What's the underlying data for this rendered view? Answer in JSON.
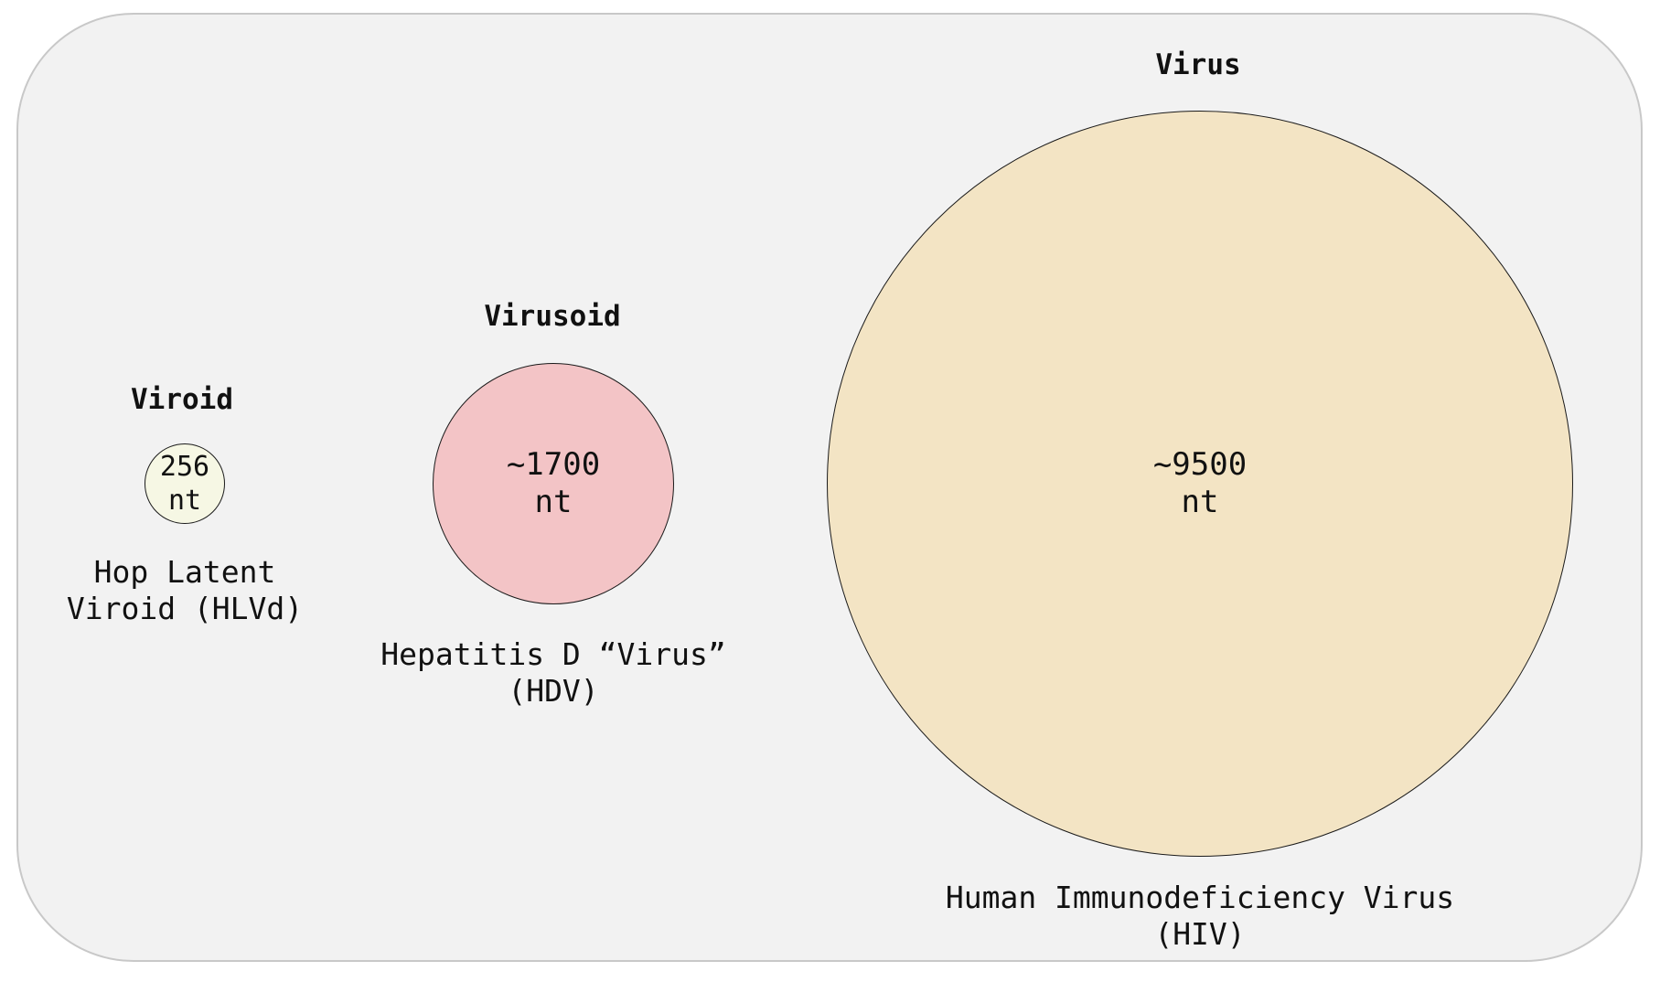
{
  "colors": {
    "panel_background": "#f2f2f2",
    "panel_border": "#c8c8c8",
    "viroid_fill": "#f6f7e4",
    "virusoid_fill": "#f3c4c6",
    "virus_fill": "#f3e4c4",
    "circle_stroke": "#1a1a1a"
  },
  "groups": [
    {
      "heading": "Viroid",
      "size_line1": "256",
      "size_line2": "nt",
      "name_line1": "Hop Latent",
      "name_line2": "Viroid (HLVd)",
      "genome_nt": 256
    },
    {
      "heading": "Virusoid",
      "size_line1": "~1700",
      "size_line2": "nt",
      "name_line1": "Hepatitis D “Virus”",
      "name_line2": "(HDV)",
      "genome_nt": 1700
    },
    {
      "heading": "Virus",
      "size_line1": "~9500",
      "size_line2": "nt",
      "name_line1": "Human Immunodeficiency Virus",
      "name_line2": "(HIV)",
      "genome_nt": 9500
    }
  ]
}
